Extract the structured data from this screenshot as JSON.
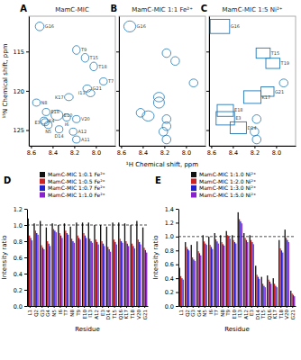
{
  "chart_data": [
    {
      "type": "scatter",
      "title": "MamC-MIC",
      "annotations": [
        "A"
      ],
      "ylabel": "¹⁵N Chemical shift, ppm",
      "xlim": [
        8.62,
        7.82
      ],
      "ylim": [
        127.0,
        110.5
      ],
      "xticks": [
        8.6,
        8.4,
        8.2,
        {
          "value": 8.0,
          "label": "8.0"
        }
      ],
      "yticks": [
        115,
        120,
        125
      ],
      "series": [
        {
          "marker": "ellipse",
          "x": [
            8.52,
            8.18,
            8.1,
            8.02,
            7.93,
            8.08,
            8.05,
            8.25,
            8.55,
            8.46,
            8.36,
            8.27,
            8.18,
            8.48,
            8.47,
            8.44,
            8.34,
            8.21,
            8.18
          ],
          "values": [
            111.8,
            114.8,
            115.8,
            116.9,
            118.8,
            119.7,
            120.3,
            120.8,
            121.5,
            122.7,
            123.1,
            123.4,
            123.6,
            123.8,
            124.0,
            124.35,
            124.9,
            125.2,
            126.2
          ],
          "x_radius": [
            0.04,
            0.035,
            0.035,
            0.035,
            0.035,
            0.04,
            0.04,
            0.04,
            0.035,
            0.035,
            0.055,
            0.035,
            0.035,
            0.035,
            0.035,
            0.035,
            0.035,
            0.035,
            0.035
          ],
          "y_radius": [
            0.55,
            0.55,
            0.55,
            0.55,
            0.45,
            0.45,
            0.45,
            0.45,
            0.45,
            0.45,
            0.65,
            0.45,
            0.45,
            0.45,
            0.45,
            0.45,
            0.45,
            0.45,
            0.45
          ],
          "labels": [
            "G16",
            "T9",
            "T15",
            "T18",
            "T7",
            "G21",
            "I13",
            "K17",
            "N8",
            "E18",
            "E10",
            "I6",
            "V20",
            "K4",
            "E3",
            "N5",
            "D14",
            "A12",
            "A11"
          ]
        }
      ]
    },
    {
      "type": "scatter",
      "title": "MamC-MIC 1:1 Fe²⁺",
      "annotations": [
        "B"
      ],
      "xlabel": "¹H Chemical shift, ppm",
      "tick_labels": "x",
      "xlim": [
        8.62,
        7.82
      ],
      "ylim": [
        127.0,
        110.5
      ],
      "xticks": [
        8.6,
        8.4,
        8.2,
        {
          "value": 8.0,
          "label": "8.0"
        }
      ],
      "yticks": [
        115,
        120,
        125
      ],
      "series": [
        {
          "marker": "ellipse",
          "x": [
            8.52,
            8.18,
            8.1,
            7.93,
            8.25,
            8.25,
            8.42,
            8.35,
            8.18,
            8.18,
            8.21,
            8.18
          ],
          "values": [
            111.8,
            115.2,
            116.2,
            119.0,
            120.8,
            121.5,
            122.8,
            123.2,
            123.6,
            124.5,
            125.2,
            126.2
          ],
          "x_radius": [
            0.055,
            0.04,
            0.04,
            0.04,
            0.05,
            0.05,
            0.04,
            0.055,
            0.04,
            0.04,
            0.04,
            0.04
          ],
          "y_radius": [
            0.7,
            0.55,
            0.55,
            0.5,
            0.6,
            0.7,
            0.55,
            0.65,
            0.55,
            0.55,
            0.55,
            0.55
          ],
          "labels": [
            "G16",
            null,
            null,
            null,
            null,
            null,
            null,
            null,
            null,
            null,
            null,
            null
          ]
        }
      ]
    },
    {
      "type": "scatter",
      "title": "MamC-MIC 1:5 Ni²⁺",
      "annotations": [
        "C"
      ],
      "tick_labels": "x",
      "xlim": [
        8.62,
        7.82
      ],
      "ylim": [
        127.0,
        110.5
      ],
      "xticks": [
        8.6,
        8.4,
        8.2,
        {
          "value": 8.0,
          "label": "8.0"
        }
      ],
      "yticks": [
        115,
        120,
        125
      ],
      "series": [
        {
          "marker": "square",
          "x": [
            8.52,
            8.12,
            8.03,
            8.08,
            8.22,
            8.47,
            8.47,
            8.35
          ],
          "values": [
            111.8,
            115.2,
            116.5,
            120.1,
            120.8,
            122.5,
            123.5,
            124.7
          ],
          "width": [
            0.18,
            0.13,
            0.13,
            0.12,
            0.16,
            0.15,
            0.17,
            0.15
          ],
          "height": [
            1.8,
            1.3,
            1.3,
            1.2,
            1.6,
            1.5,
            1.7,
            1.5
          ],
          "labels": [
            "G16",
            "T15",
            "T19",
            "G21",
            "K17",
            "E18",
            "E3",
            "D14"
          ]
        },
        {
          "marker": "ellipse",
          "x": [
            7.93,
            8.18,
            8.2,
            8.18
          ],
          "values": [
            119.0,
            123.6,
            125.2,
            126.2
          ],
          "x_radius": [
            0.04,
            0.04,
            0.04,
            0.04
          ],
          "y_radius": [
            0.5,
            0.55,
            0.55,
            0.55
          ]
        }
      ]
    },
    {
      "type": "bar",
      "annotations": [
        "D"
      ],
      "xlabel": "Residue",
      "ylabel": "Intensity ratio",
      "legend": "top",
      "reference_line": 1.0,
      "ylim": [
        0.0,
        1.2
      ],
      "yticks": [
        {
          "value": 0.0,
          "label": "0.0"
        },
        0.2,
        0.4,
        0.6,
        0.8,
        {
          "value": 1.0,
          "label": "1.0"
        },
        1.2
      ],
      "categories": [
        "L1",
        "Q2",
        "G3",
        "G4",
        "N5",
        "I6",
        "T7",
        "N8",
        "T9",
        "E10",
        "I13",
        "A12",
        "E3",
        "D14",
        "T15",
        "Q16",
        "K17",
        "T18",
        "V20",
        "G21"
      ],
      "series": [
        {
          "name": "MamC-MIC 1:0.1 Fe²⁺",
          "color": "#111111",
          "values": [
            1.08,
            1.02,
            1.05,
            0.97,
            1.02,
            1.0,
            1.02,
            0.98,
            1.03,
            1.03,
            1.03,
            1.0,
            1.0,
            0.98,
            1.03,
            1.03,
            1.02,
            1.0,
            1.05,
            0.97
          ]
        },
        {
          "name": "MamC-MIC 1:0.5 Fe²⁺",
          "color": "#cc2222",
          "values": [
            0.87,
            0.93,
            0.75,
            0.8,
            0.95,
            0.9,
            0.93,
            0.83,
            0.87,
            0.9,
            0.83,
            0.82,
            0.8,
            0.73,
            0.82,
            0.83,
            0.8,
            0.77,
            0.82,
            0.72
          ]
        },
        {
          "name": "MamC-MIC 1:0.7 Fe²⁺",
          "color": "#2222cc",
          "values": [
            0.84,
            0.9,
            0.72,
            0.77,
            0.93,
            0.87,
            0.9,
            0.8,
            0.84,
            0.87,
            0.8,
            0.79,
            0.77,
            0.7,
            0.79,
            0.8,
            0.77,
            0.74,
            0.79,
            0.69
          ]
        },
        {
          "name": "MamC-MIC 1:1.0 Fe²⁺",
          "color": "#8822cc",
          "values": [
            0.81,
            0.88,
            0.7,
            0.74,
            0.91,
            0.84,
            0.88,
            0.78,
            0.82,
            0.84,
            0.78,
            0.76,
            0.74,
            0.67,
            0.76,
            0.78,
            0.74,
            0.71,
            0.76,
            0.66
          ]
        }
      ]
    },
    {
      "type": "bar",
      "annotations": [
        "E"
      ],
      "xlabel": "Residue",
      "ylabel": "Intensity ratio",
      "legend": "top",
      "reference_line": 1.0,
      "ylim": [
        0.0,
        1.4
      ],
      "yticks": [
        {
          "value": 0.0,
          "label": "0.0"
        },
        0.2,
        0.4,
        0.6,
        0.8,
        {
          "value": 1.0,
          "label": "1.0"
        },
        1.2,
        1.4
      ],
      "categories": [
        "L1",
        "Q2",
        "G3",
        "G4",
        "N5",
        "I6",
        "T7",
        "N8",
        "T9",
        "E10",
        "I13",
        "A12",
        "E3",
        "D14",
        "T15",
        "Q16",
        "K17",
        "T18",
        "V20",
        "G21"
      ],
      "series": [
        {
          "name": "MamC-MIC 1:1.0 Ni²⁺",
          "color": "#111111",
          "values": [
            0.55,
            0.92,
            0.88,
            0.93,
            1.02,
            1.0,
            1.05,
            1.02,
            1.08,
            1.02,
            1.35,
            1.05,
            1.02,
            0.58,
            0.42,
            0.44,
            0.4,
            0.95,
            1.1,
            0.22
          ]
        },
        {
          "name": "MamC-MIC 1:2.0 Ni²⁺",
          "color": "#cc2222",
          "values": [
            0.43,
            0.85,
            0.7,
            0.79,
            0.93,
            0.88,
            0.96,
            0.92,
            1.02,
            0.95,
            1.25,
            0.98,
            0.95,
            0.45,
            0.32,
            0.38,
            0.32,
            0.83,
            0.98,
            0.18
          ]
        },
        {
          "name": "MamC-MIC 1:3.0 Ni²⁺",
          "color": "#2222cc",
          "values": [
            0.4,
            0.82,
            0.67,
            0.76,
            0.9,
            0.85,
            0.93,
            0.89,
            1.0,
            0.92,
            1.22,
            0.95,
            0.92,
            0.42,
            0.29,
            0.35,
            0.29,
            0.8,
            0.95,
            0.16
          ]
        },
        {
          "name": "MamC-MIC 1:5.0 Ni²⁺",
          "color": "#8822cc",
          "values": [
            0.38,
            0.8,
            0.65,
            0.73,
            0.88,
            0.82,
            0.9,
            0.87,
            0.97,
            0.9,
            1.19,
            0.92,
            0.89,
            0.39,
            0.27,
            0.32,
            0.27,
            0.77,
            0.92,
            0.14
          ]
        }
      ]
    }
  ]
}
